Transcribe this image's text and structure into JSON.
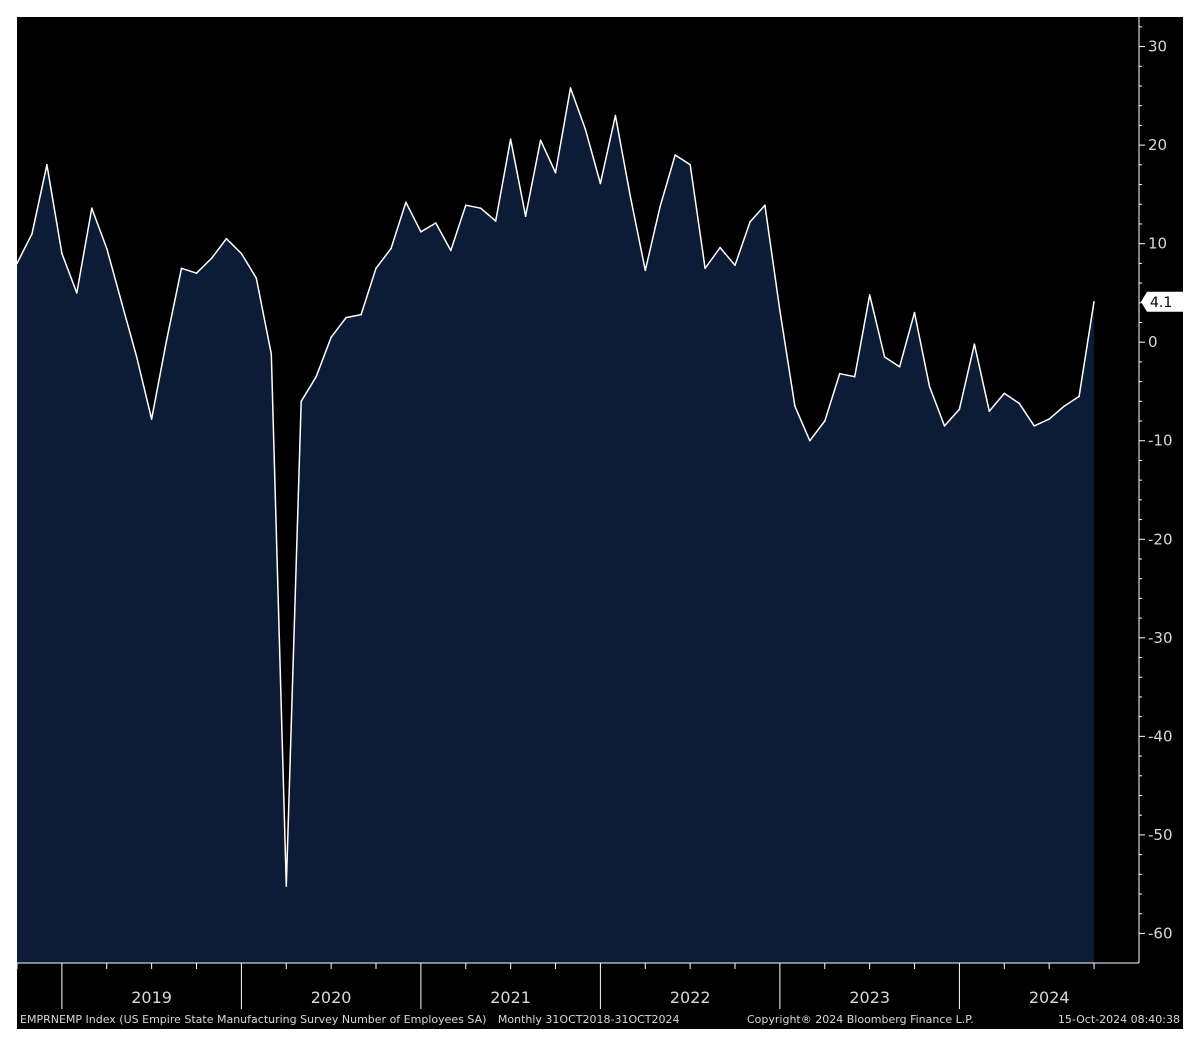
{
  "chart_data": {
    "type": "area",
    "ticker": "EMPRNEMP Index (US Empire State Manufacturing Survey Number of Employees SA)",
    "frequency": "Monthly 31OCT2018-31OCT2024",
    "copyright": "Copyright® 2024 Bloomberg Finance L.P.",
    "timestamp": "15-Oct-2024 08:40:38",
    "last_value": 4.1,
    "last_value_label": "4.1",
    "ylim": [
      -63,
      33
    ],
    "yticks": [
      30,
      20,
      10,
      0,
      -10,
      -20,
      -30,
      -40,
      -50,
      -60
    ],
    "ytick_labels": [
      "30",
      "20",
      "10",
      "0",
      "-10",
      "-20",
      "-30",
      "-40",
      "-50",
      "-60"
    ],
    "xlim": [
      0,
      73
    ],
    "year_labels": [
      "2019",
      "2020",
      "2021",
      "2022",
      "2023",
      "2024"
    ],
    "grid": false,
    "colors": {
      "background": "#000000",
      "fill": "#0c1b36",
      "line": "#ffffff"
    },
    "series": [
      {
        "x": [
          "2018-10",
          "2018-11",
          "2018-12",
          "2019-01",
          "2019-02",
          "2019-03",
          "2019-04",
          "2019-05",
          "2019-06",
          "2019-07",
          "2019-08",
          "2019-09",
          "2019-10",
          "2019-11",
          "2019-12",
          "2020-01",
          "2020-02",
          "2020-03",
          "2020-04",
          "2020-05",
          "2020-06",
          "2020-07",
          "2020-08",
          "2020-09",
          "2020-10",
          "2020-11",
          "2020-12",
          "2021-01",
          "2021-02",
          "2021-03",
          "2021-04",
          "2021-05",
          "2021-06",
          "2021-07",
          "2021-08",
          "2021-09",
          "2021-10",
          "2021-11",
          "2021-12",
          "2022-01",
          "2022-02",
          "2022-03",
          "2022-04",
          "2022-05",
          "2022-06",
          "2022-07",
          "2022-08",
          "2022-09",
          "2022-10",
          "2022-11",
          "2022-12",
          "2023-01",
          "2023-02",
          "2023-03",
          "2023-04",
          "2023-05",
          "2023-06",
          "2023-07",
          "2023-08",
          "2023-09",
          "2023-10",
          "2023-11",
          "2023-12",
          "2024-01",
          "2024-02",
          "2024-03",
          "2024-04",
          "2024-05",
          "2024-06",
          "2024-07",
          "2024-08",
          "2024-09",
          "2024-10"
        ],
        "values": [
          8.0,
          11.0,
          18.0,
          9.0,
          5.0,
          13.6,
          9.5,
          4.0,
          -1.5,
          -7.8,
          0.2,
          7.5,
          7.0,
          8.5,
          10.5,
          9.0,
          6.5,
          -1.2,
          -55.2,
          -6.0,
          -3.5,
          0.5,
          2.5,
          2.8,
          7.5,
          9.5,
          14.2,
          11.2,
          12.1,
          9.3,
          13.9,
          13.6,
          12.3,
          20.6,
          12.8,
          20.5,
          17.2,
          25.8,
          21.6,
          16.1,
          23.0,
          14.8,
          7.3,
          13.8,
          19.0,
          18.0,
          7.5,
          9.6,
          7.8,
          12.2,
          13.9,
          3.2,
          -6.5,
          -10.0,
          -8.0,
          -3.2,
          -3.5,
          4.8,
          -1.5,
          -2.5,
          3.0,
          -4.5,
          -8.5,
          -6.8,
          -0.2,
          -7.0,
          -5.2,
          -6.2,
          -8.5,
          -7.8,
          -6.5,
          -5.5,
          4.1
        ]
      }
    ]
  }
}
